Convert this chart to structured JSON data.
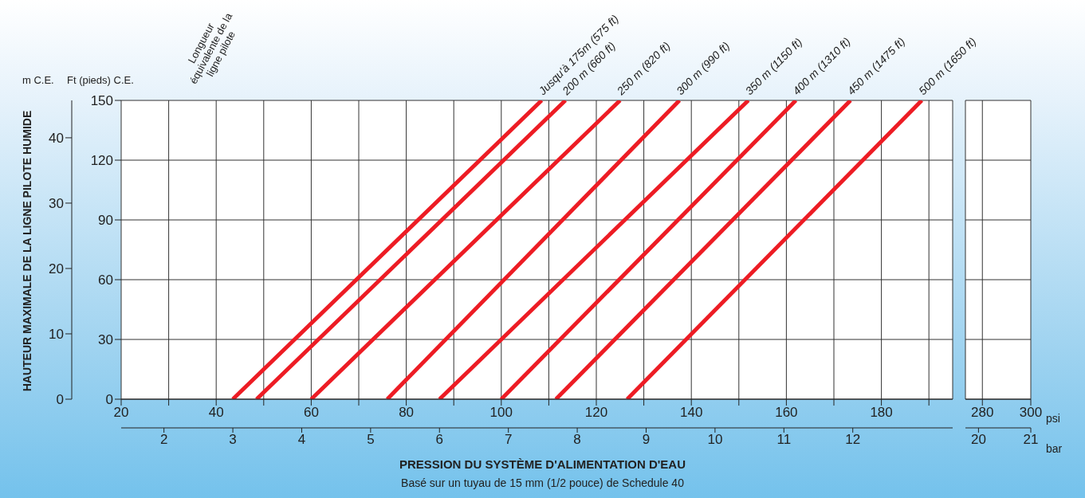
{
  "chart_data": [
    {
      "type": "line",
      "legend_title": "Longueur équivalente de la ligne pilote",
      "ylabel": "HAUTEUR MAXIMALE DE LA LIGNE PILOTE HUMIDE",
      "xlabel": "PRESSION DU SYSTÈME D'ALIMENTATION D'EAU",
      "annotations": [
        "m C.E.",
        "Ft (pieds) C.E.",
        "psi",
        "bar",
        "Basé sur un tuyau de 15 mm (1/2 pouce) de Schedule 40"
      ],
      "series": [
        {
          "name": "Jusqu'à 175m (575 ft)",
          "color": "#ed1c24",
          "axis": "y2",
          "x": [
            43.5,
            108.5
          ],
          "values": [
            0,
            150
          ]
        },
        {
          "name": "200 m (660 ft)",
          "color": "#ed1c24",
          "axis": "y2",
          "x": [
            48.5,
            113.5
          ],
          "values": [
            0,
            150
          ]
        },
        {
          "name": "250 m (820 ft)",
          "color": "#ed1c24",
          "axis": "y2",
          "x": [
            60,
            125
          ],
          "values": [
            0,
            150
          ]
        },
        {
          "name": "300 m (990 ft)",
          "color": "#ed1c24",
          "axis": "y2",
          "x": [
            76,
            137.5
          ],
          "values": [
            0,
            150
          ]
        },
        {
          "name": "350  m (1150 ft)",
          "color": "#ed1c24",
          "axis": "y2",
          "x": [
            87,
            152
          ],
          "values": [
            0,
            150
          ]
        },
        {
          "name": "400 m (1310 ft)",
          "color": "#ed1c24",
          "axis": "y2",
          "x": [
            100,
            162
          ],
          "values": [
            0,
            150
          ]
        },
        {
          "name": "450 m (1475 ft)",
          "color": "#ed1c24",
          "axis": "y2",
          "x": [
            111.5,
            173.5
          ],
          "values": [
            0,
            150
          ]
        },
        {
          "name": "500 m (1650 ft)",
          "color": "#ed1c24",
          "axis": "y2",
          "x": [
            126.5,
            188.5
          ],
          "values": [
            0,
            150
          ]
        }
      ],
      "xlim": [
        20,
        195
      ],
      "xticks": [
        20,
        {
          "value": 30,
          "label": null
        },
        40,
        {
          "value": 50,
          "label": null
        },
        60,
        {
          "value": 70,
          "label": null
        },
        80,
        {
          "value": 90,
          "label": null
        },
        100,
        {
          "value": 110,
          "label": null
        },
        120,
        {
          "value": 130,
          "label": null
        },
        140,
        {
          "value": 150,
          "label": null
        },
        160,
        {
          "value": 170,
          "label": null
        },
        180,
        {
          "value": 190,
          "label": null
        }
      ],
      "x2lim": [
        1.379,
        13.45
      ],
      "x2ticks": [
        2,
        3,
        4,
        5,
        6,
        7,
        8,
        9,
        10,
        11,
        12
      ],
      "y2lim": [
        0,
        150
      ],
      "y2ticks": [
        0,
        30,
        60,
        90,
        120,
        150
      ],
      "ylim": [
        0,
        45.72
      ],
      "yticks": [
        0,
        10,
        20,
        30,
        40
      ],
      "grid": true
    },
    {
      "type": "line",
      "xlim": [
        273,
        300
      ],
      "xticks": [
        280,
        300
      ],
      "x2lim": [
        19.75,
        21
      ],
      "x2ticks": [
        20,
        21
      ],
      "y2lim": [
        0,
        150
      ],
      "y2ticks": [
        0,
        30,
        60,
        90,
        120,
        150
      ],
      "tick_labels": "x",
      "grid": true
    }
  ]
}
